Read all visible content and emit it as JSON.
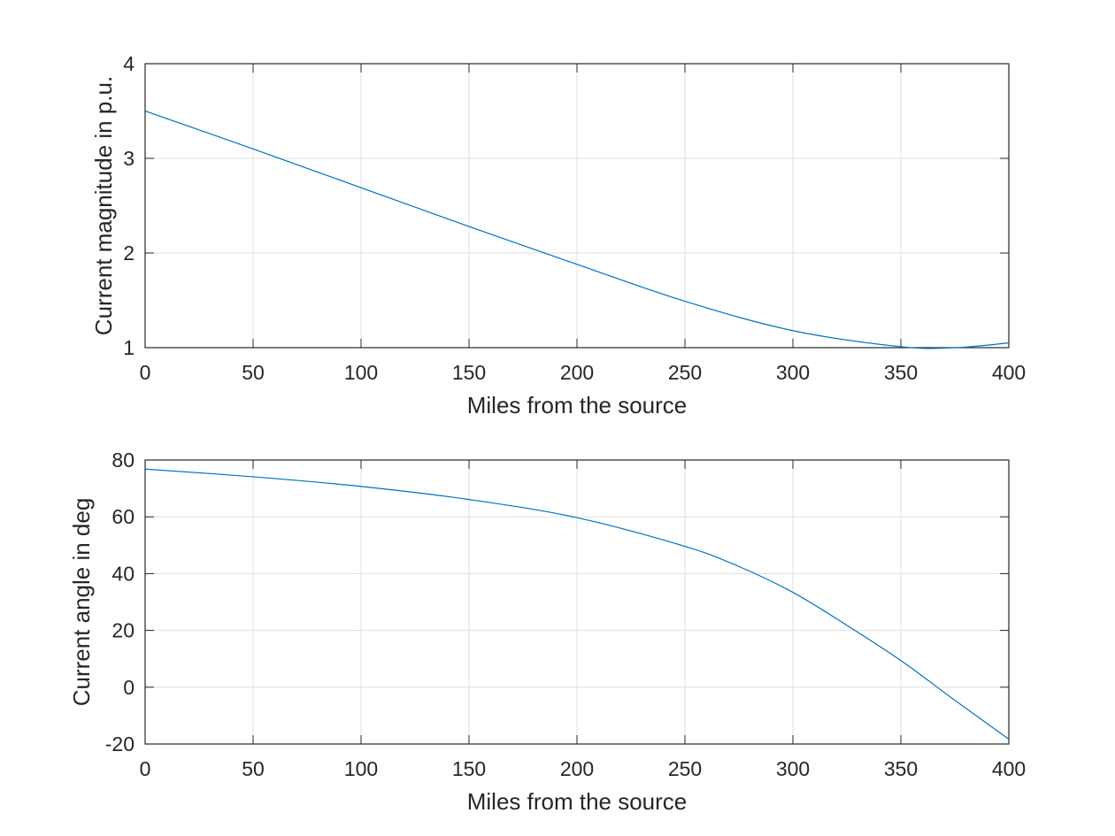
{
  "chart_data": [
    {
      "type": "line",
      "xlabel": "Miles from the source",
      "ylabel": "Current magnitude in p.u.",
      "xlim": [
        0,
        400
      ],
      "ylim": [
        1,
        4
      ],
      "xticks": [
        "0",
        "50",
        "100",
        "150",
        "200",
        "250",
        "300",
        "350",
        "400"
      ],
      "yticks": [
        "1",
        "2",
        "3",
        "4"
      ],
      "grid": true,
      "color": "#0072BD",
      "x": [
        0,
        50,
        100,
        150,
        200,
        250,
        300,
        350,
        375,
        400
      ],
      "y": [
        3.5,
        3.1,
        2.69,
        2.28,
        1.88,
        1.49,
        1.18,
        1.01,
        1.0,
        1.05
      ]
    },
    {
      "type": "line",
      "xlabel": "Miles from the source",
      "ylabel": "Current angle in deg",
      "xlim": [
        0,
        400
      ],
      "ylim": [
        -20,
        80
      ],
      "xticks": [
        "0",
        "50",
        "100",
        "150",
        "200",
        "250",
        "300",
        "350",
        "400"
      ],
      "yticks": [
        "-20",
        "0",
        "20",
        "40",
        "60",
        "80"
      ],
      "grid": true,
      "color": "#0072BD",
      "x": [
        0,
        50,
        100,
        150,
        200,
        250,
        275,
        300,
        325,
        350,
        375,
        400
      ],
      "y": [
        76.8,
        74.1,
        70.7,
        66.1,
        59.7,
        49.6,
        42.5,
        33.4,
        21.8,
        9.4,
        -4.6,
        -18.3
      ]
    }
  ]
}
